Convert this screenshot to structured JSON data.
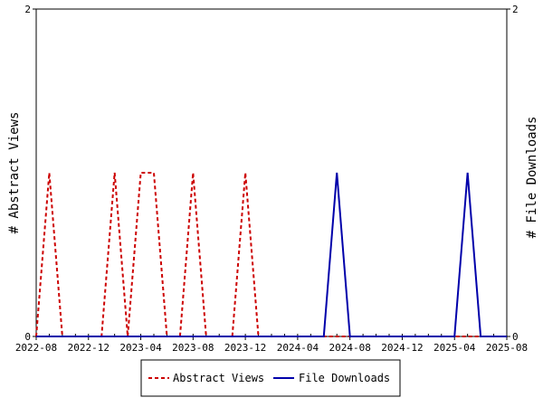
{
  "chart_data": {
    "type": "line",
    "title": "",
    "xlabel": "",
    "ylabel_left": "# Abstract Views",
    "ylabel_right": "# File Downloads",
    "x_ticks": [
      "2022-08",
      "2022-12",
      "2023-04",
      "2023-08",
      "2023-12",
      "2024-04",
      "2024-08",
      "2024-12",
      "2025-04",
      "2025-08"
    ],
    "x_range": [
      "2022-08",
      "2025-08"
    ],
    "y_left_range": [
      0,
      2
    ],
    "y_right_range": [
      0,
      2
    ],
    "y_left_ticks": [
      "0",
      "2"
    ],
    "y_right_ticks": [
      "0",
      "2"
    ],
    "x": [
      "2022-08",
      "2022-09",
      "2022-10",
      "2022-11",
      "2022-12",
      "2023-01",
      "2023-02",
      "2023-03",
      "2023-04",
      "2023-05",
      "2023-06",
      "2023-07",
      "2023-08",
      "2023-09",
      "2023-10",
      "2023-11",
      "2023-12",
      "2024-01",
      "2024-02",
      "2024-03",
      "2024-04",
      "2024-05",
      "2024-06",
      "2024-07",
      "2024-08",
      "2024-09",
      "2024-10",
      "2024-11",
      "2024-12",
      "2025-01",
      "2025-02",
      "2025-03",
      "2025-04",
      "2025-05",
      "2025-06",
      "2025-07",
      "2025-08"
    ],
    "series": [
      {
        "name": "Abstract Views",
        "color": "#cc0000",
        "style": "dashed",
        "axis": "left",
        "values": [
          0,
          1,
          0,
          0,
          0,
          0,
          1,
          0,
          1,
          1,
          0,
          0,
          1,
          0,
          0,
          0,
          1,
          0,
          0,
          0,
          0,
          0,
          0,
          0,
          0,
          0,
          0,
          0,
          0,
          0,
          0,
          0,
          0,
          0,
          0,
          0,
          0
        ]
      },
      {
        "name": "File Downloads",
        "color": "#0000aa",
        "style": "solid",
        "axis": "right",
        "values": [
          0,
          0,
          0,
          0,
          0,
          0,
          0,
          0,
          0,
          0,
          0,
          0,
          0,
          0,
          0,
          0,
          0,
          0,
          0,
          0,
          0,
          0,
          0,
          1,
          0,
          0,
          0,
          0,
          0,
          0,
          0,
          0,
          0,
          1,
          0,
          0,
          0
        ]
      }
    ],
    "grid": false,
    "legend_position": "bottom"
  }
}
